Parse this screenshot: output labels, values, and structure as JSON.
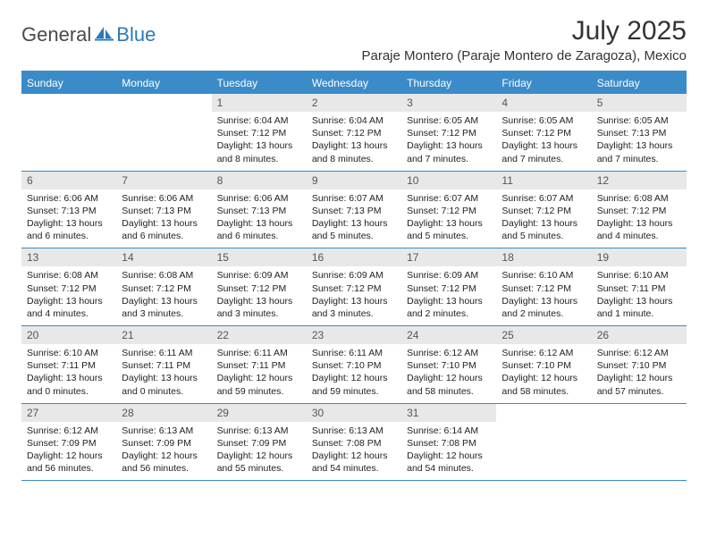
{
  "brand": {
    "part1": "General",
    "part2": "Blue"
  },
  "title": "July 2025",
  "location": "Paraje Montero (Paraje Montero de Zaragoza), Mexico",
  "colors": {
    "header_blue": "#3b8bc9",
    "logo_blue": "#2a7ab8",
    "day_bg": "#e8e8e8",
    "text": "#222222"
  },
  "weekdays": [
    "Sunday",
    "Monday",
    "Tuesday",
    "Wednesday",
    "Thursday",
    "Friday",
    "Saturday"
  ],
  "weeks": [
    [
      null,
      null,
      {
        "n": "1",
        "sr": "6:04 AM",
        "ss": "7:12 PM",
        "dl": "13 hours and 8 minutes."
      },
      {
        "n": "2",
        "sr": "6:04 AM",
        "ss": "7:12 PM",
        "dl": "13 hours and 8 minutes."
      },
      {
        "n": "3",
        "sr": "6:05 AM",
        "ss": "7:12 PM",
        "dl": "13 hours and 7 minutes."
      },
      {
        "n": "4",
        "sr": "6:05 AM",
        "ss": "7:12 PM",
        "dl": "13 hours and 7 minutes."
      },
      {
        "n": "5",
        "sr": "6:05 AM",
        "ss": "7:13 PM",
        "dl": "13 hours and 7 minutes."
      }
    ],
    [
      {
        "n": "6",
        "sr": "6:06 AM",
        "ss": "7:13 PM",
        "dl": "13 hours and 6 minutes."
      },
      {
        "n": "7",
        "sr": "6:06 AM",
        "ss": "7:13 PM",
        "dl": "13 hours and 6 minutes."
      },
      {
        "n": "8",
        "sr": "6:06 AM",
        "ss": "7:13 PM",
        "dl": "13 hours and 6 minutes."
      },
      {
        "n": "9",
        "sr": "6:07 AM",
        "ss": "7:13 PM",
        "dl": "13 hours and 5 minutes."
      },
      {
        "n": "10",
        "sr": "6:07 AM",
        "ss": "7:12 PM",
        "dl": "13 hours and 5 minutes."
      },
      {
        "n": "11",
        "sr": "6:07 AM",
        "ss": "7:12 PM",
        "dl": "13 hours and 5 minutes."
      },
      {
        "n": "12",
        "sr": "6:08 AM",
        "ss": "7:12 PM",
        "dl": "13 hours and 4 minutes."
      }
    ],
    [
      {
        "n": "13",
        "sr": "6:08 AM",
        "ss": "7:12 PM",
        "dl": "13 hours and 4 minutes."
      },
      {
        "n": "14",
        "sr": "6:08 AM",
        "ss": "7:12 PM",
        "dl": "13 hours and 3 minutes."
      },
      {
        "n": "15",
        "sr": "6:09 AM",
        "ss": "7:12 PM",
        "dl": "13 hours and 3 minutes."
      },
      {
        "n": "16",
        "sr": "6:09 AM",
        "ss": "7:12 PM",
        "dl": "13 hours and 3 minutes."
      },
      {
        "n": "17",
        "sr": "6:09 AM",
        "ss": "7:12 PM",
        "dl": "13 hours and 2 minutes."
      },
      {
        "n": "18",
        "sr": "6:10 AM",
        "ss": "7:12 PM",
        "dl": "13 hours and 2 minutes."
      },
      {
        "n": "19",
        "sr": "6:10 AM",
        "ss": "7:11 PM",
        "dl": "13 hours and 1 minute."
      }
    ],
    [
      {
        "n": "20",
        "sr": "6:10 AM",
        "ss": "7:11 PM",
        "dl": "13 hours and 0 minutes."
      },
      {
        "n": "21",
        "sr": "6:11 AM",
        "ss": "7:11 PM",
        "dl": "13 hours and 0 minutes."
      },
      {
        "n": "22",
        "sr": "6:11 AM",
        "ss": "7:11 PM",
        "dl": "12 hours and 59 minutes."
      },
      {
        "n": "23",
        "sr": "6:11 AM",
        "ss": "7:10 PM",
        "dl": "12 hours and 59 minutes."
      },
      {
        "n": "24",
        "sr": "6:12 AM",
        "ss": "7:10 PM",
        "dl": "12 hours and 58 minutes."
      },
      {
        "n": "25",
        "sr": "6:12 AM",
        "ss": "7:10 PM",
        "dl": "12 hours and 58 minutes."
      },
      {
        "n": "26",
        "sr": "6:12 AM",
        "ss": "7:10 PM",
        "dl": "12 hours and 57 minutes."
      }
    ],
    [
      {
        "n": "27",
        "sr": "6:12 AM",
        "ss": "7:09 PM",
        "dl": "12 hours and 56 minutes."
      },
      {
        "n": "28",
        "sr": "6:13 AM",
        "ss": "7:09 PM",
        "dl": "12 hours and 56 minutes."
      },
      {
        "n": "29",
        "sr": "6:13 AM",
        "ss": "7:09 PM",
        "dl": "12 hours and 55 minutes."
      },
      {
        "n": "30",
        "sr": "6:13 AM",
        "ss": "7:08 PM",
        "dl": "12 hours and 54 minutes."
      },
      {
        "n": "31",
        "sr": "6:14 AM",
        "ss": "7:08 PM",
        "dl": "12 hours and 54 minutes."
      },
      null,
      null
    ]
  ],
  "labels": {
    "sunrise": "Sunrise:",
    "sunset": "Sunset:",
    "daylight": "Daylight:"
  }
}
